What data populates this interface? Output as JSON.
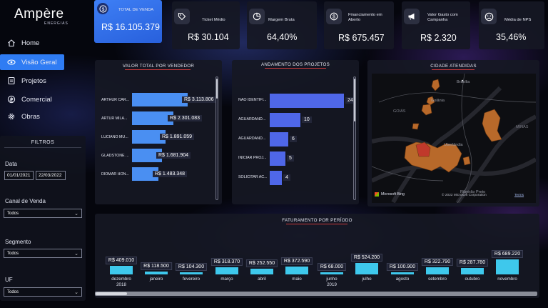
{
  "app": {
    "logo": "Ampère",
    "logo_sub": "ENERGIAS"
  },
  "nav": [
    {
      "label": "Home",
      "icon": "home-icon"
    },
    {
      "label": "Visão Geral",
      "icon": "eye-icon",
      "active": true
    },
    {
      "label": "Projetos",
      "icon": "projects-icon"
    },
    {
      "label": "Comercial",
      "icon": "commercial-icon"
    },
    {
      "label": "Obras",
      "icon": "gear-icon"
    }
  ],
  "filters": {
    "title": "FILTROS",
    "date_label": "Data",
    "date_start": "01/01/2021",
    "date_end": "22/03/2022",
    "canal_label": "Canal de Venda",
    "canal_value": "Todos",
    "segmento_label": "Segmento",
    "segmento_value": "Todos",
    "uf_label": "UF",
    "uf_value": "Todos"
  },
  "kpis": [
    {
      "title": "TOTAL DE VENDA",
      "value": "R$ 16.105.379",
      "icon": "dollar-circle-icon"
    },
    {
      "title": "Ticket Médio",
      "value": "R$ 30.104",
      "icon": "tag-icon"
    },
    {
      "title": "Margem Bruta",
      "value": "64,40%",
      "icon": "pie-chart-icon"
    },
    {
      "title": "Financiamento em Aberto",
      "value": "R$ 675.457",
      "icon": "dollar-circle-icon"
    },
    {
      "title": "Valor Gasto com Campanha",
      "value": "R$ 2.320",
      "icon": "megaphone-icon"
    },
    {
      "title": "Média de NPS",
      "value": "35,46%",
      "icon": "sad-face-icon"
    }
  ],
  "sellers": {
    "title": "VALOR TOTAL POR VENDEDOR",
    "items": [
      {
        "name": "ARTHUR CAR...",
        "value": 3113806,
        "label": "R$ 3.113.806"
      },
      {
        "name": "ARTUR MILA...",
        "value": 2301083,
        "label": "R$ 2.301.083"
      },
      {
        "name": "LUCIANO MU...",
        "value": 1891059,
        "label": "R$ 1.891.059"
      },
      {
        "name": "GLADSTONE ...",
        "value": 1681904,
        "label": "R$ 1.681.904"
      },
      {
        "name": "DIOMAR HON...",
        "value": 1483348,
        "label": "R$ 1.483.348"
      }
    ]
  },
  "projects": {
    "title": "ANDAMENTO DOS PROJETOS",
    "items": [
      {
        "name": "NÃO IDENTIFI...",
        "value": 24
      },
      {
        "name": "AGUARDAND...",
        "value": 10
      },
      {
        "name": "AGUARDAND...",
        "value": 6
      },
      {
        "name": "INICIAR PROJ...",
        "value": 5
      },
      {
        "name": "SOLICITAR AC...",
        "value": 4
      }
    ]
  },
  "map": {
    "title": "CIDADE ATENDIDAS",
    "labels": {
      "brasilia": "Brasília",
      "goiania": "Goiânia",
      "goias": "GOIÁS",
      "uberlandia": "Uberlândia",
      "minas": "MINAS",
      "ribeirao": "Ribeirão Preto"
    },
    "brand": "Microsoft Bing",
    "copyright": "© 2022 Microsoft Corporation",
    "terms": "Terms"
  },
  "billing": {
    "title": "FATURAMENTO POR PERÍODO",
    "items": [
      {
        "month": "dezembro",
        "year": "2018",
        "value": 409010,
        "label": "R$ 409.010"
      },
      {
        "month": "janeiro",
        "year": "",
        "value": 118500,
        "label": "R$ 118.500"
      },
      {
        "month": "fevereiro",
        "year": "",
        "value": 104300,
        "label": "R$ 104.300"
      },
      {
        "month": "março",
        "year": "",
        "value": 318370,
        "label": "R$ 318.370"
      },
      {
        "month": "abril",
        "year": "",
        "value": 252550,
        "label": "R$ 252.550"
      },
      {
        "month": "maio",
        "year": "",
        "value": 372590,
        "label": "R$ 372.590"
      },
      {
        "month": "junho",
        "year": "2019",
        "value": 68000,
        "label": "R$ 68.000"
      },
      {
        "month": "julho",
        "year": "",
        "value": 524200,
        "label": "R$ 524.200"
      },
      {
        "month": "agosto",
        "year": "",
        "value": 100900,
        "label": "R$ 100.900"
      },
      {
        "month": "setembro",
        "year": "",
        "value": 322790,
        "label": "R$ 322.790"
      },
      {
        "month": "outubro",
        "year": "",
        "value": 287780,
        "label": "R$ 287.780"
      },
      {
        "month": "novembro",
        "year": "",
        "value": 689220,
        "label": "R$ 689.220"
      }
    ]
  },
  "colors": {
    "accent": "#2f7cf3",
    "bar_seller": "#4a8ff2",
    "bar_project": "#4f67e8",
    "bar_billing": "#3ec8ec",
    "map_fill": "#b8692a"
  }
}
